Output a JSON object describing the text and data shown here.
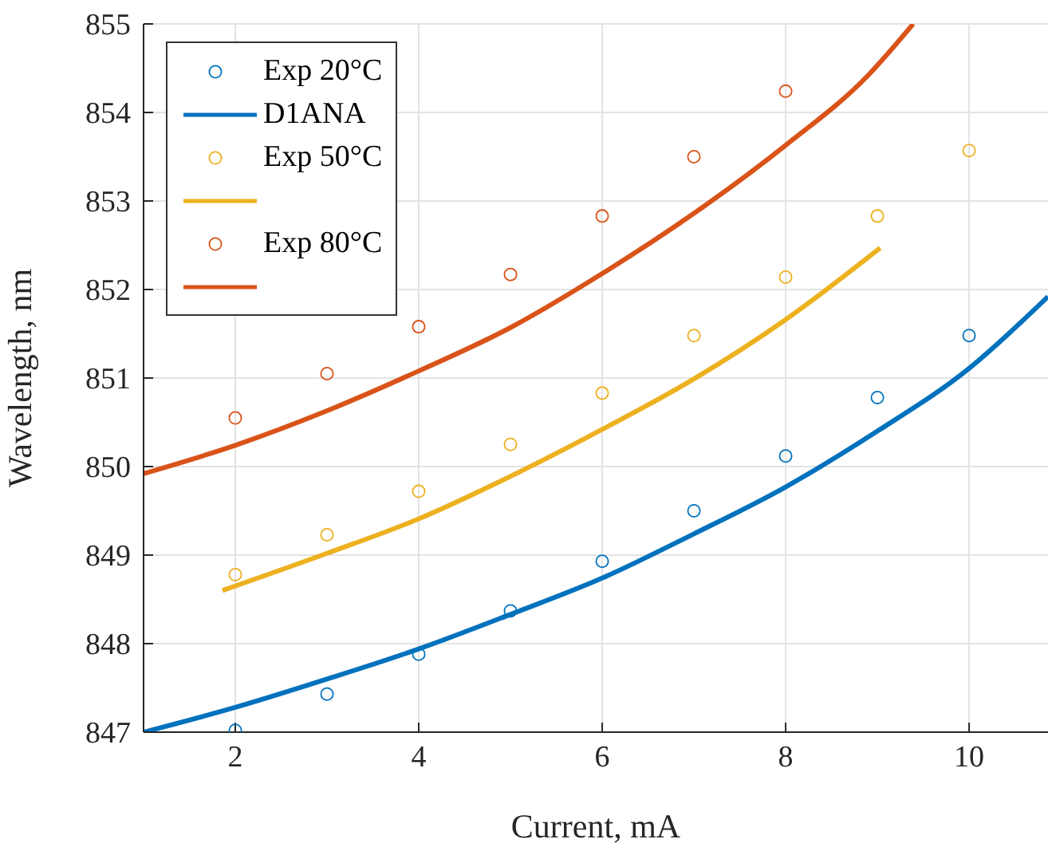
{
  "chart_data": {
    "type": "line",
    "xlabel": "Current, mA",
    "ylabel": "Wavelength, nm",
    "xlim": [
      1,
      10.86
    ],
    "xticks": [
      2,
      4,
      6,
      8,
      10
    ],
    "ylim": [
      847,
      855
    ],
    "yticks": [
      847,
      848,
      849,
      850,
      851,
      852,
      853,
      854,
      855
    ],
    "grid": true,
    "legend": "top left",
    "series": [
      {
        "type": "scatter",
        "name": "Exp 20°C",
        "color": "#0072bd",
        "marker": "circle",
        "x": [
          2,
          3,
          4,
          5,
          6,
          7,
          8,
          9,
          10
        ],
        "values": [
          847.02,
          847.43,
          847.88,
          848.37,
          848.93,
          849.5,
          850.12,
          850.78,
          851.48
        ]
      },
      {
        "name": "D1ANA",
        "color": "#0072bd",
        "marker": "none",
        "x": [
          1,
          2,
          3,
          4,
          5,
          6,
          7,
          8,
          9,
          10,
          10.86
        ],
        "values": [
          847,
          847.28,
          847.6,
          847.94,
          848.33,
          848.74,
          849.24,
          849.77,
          850.4,
          851.11,
          851.92
        ]
      },
      {
        "type": "scatter",
        "name": "Exp 50°C",
        "color": "#edb120",
        "marker": "circle",
        "x": [
          2,
          3,
          4,
          5,
          6,
          7,
          8,
          9,
          10
        ],
        "values": [
          848.78,
          849.23,
          849.72,
          850.25,
          850.83,
          851.48,
          852.14,
          852.83,
          853.57
        ]
      },
      {
        "color": "#edb120",
        "marker": "none",
        "x": [
          1.86,
          3,
          4,
          5,
          6,
          7,
          8,
          9.03
        ],
        "values": [
          848.6,
          849.02,
          849.41,
          849.89,
          850.42,
          850.99,
          851.66,
          852.47
        ]
      },
      {
        "type": "scatter",
        "name": "Exp 80°C",
        "color": "#d95319",
        "marker": "circle",
        "x": [
          2,
          3,
          4,
          5,
          6,
          7,
          8
        ],
        "values": [
          850.55,
          851.05,
          851.58,
          852.17,
          852.83,
          853.5,
          854.24
        ]
      },
      {
        "color": "#d95319",
        "marker": "none",
        "x": [
          1,
          2,
          3,
          4,
          5,
          6,
          7,
          8,
          8.89,
          9.39
        ],
        "values": [
          849.92,
          850.24,
          850.63,
          851.08,
          851.57,
          852.18,
          852.86,
          853.63,
          854.41,
          855
        ]
      }
    ]
  }
}
